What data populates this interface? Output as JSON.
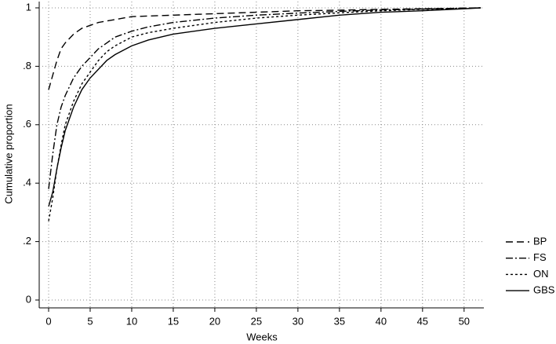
{
  "chart_data": {
    "type": "line",
    "xlabel": "Weeks",
    "ylabel": "Cumulative proportion",
    "x": [
      0,
      0.5,
      1,
      1.5,
      2,
      3,
      4,
      5,
      6,
      7,
      8,
      10,
      12,
      15,
      20,
      25,
      30,
      35,
      40,
      45,
      50,
      52
    ],
    "series": [
      {
        "name": "BP",
        "color": "#000000",
        "dash": "9,5",
        "values": [
          0.72,
          0.77,
          0.82,
          0.86,
          0.88,
          0.91,
          0.93,
          0.94,
          0.95,
          0.955,
          0.96,
          0.97,
          0.972,
          0.975,
          0.98,
          0.985,
          0.99,
          0.992,
          0.995,
          0.997,
          0.999,
          1
        ]
      },
      {
        "name": "FS",
        "color": "#000000",
        "dash": "9,3,2,3",
        "values": [
          0.38,
          0.5,
          0.6,
          0.66,
          0.7,
          0.76,
          0.8,
          0.83,
          0.86,
          0.88,
          0.9,
          0.92,
          0.935,
          0.95,
          0.965,
          0.975,
          0.982,
          0.988,
          0.993,
          0.996,
          0.999,
          1
        ]
      },
      {
        "name": "ON",
        "color": "#000000",
        "dash": "3,3",
        "values": [
          0.27,
          0.35,
          0.45,
          0.53,
          0.6,
          0.68,
          0.74,
          0.78,
          0.82,
          0.85,
          0.87,
          0.9,
          0.915,
          0.93,
          0.95,
          0.965,
          0.975,
          0.983,
          0.99,
          0.995,
          0.998,
          1
        ]
      },
      {
        "name": "GBS",
        "color": "#000000",
        "dash": "none",
        "values": [
          0.32,
          0.37,
          0.45,
          0.52,
          0.58,
          0.66,
          0.72,
          0.76,
          0.79,
          0.82,
          0.84,
          0.87,
          0.89,
          0.91,
          0.93,
          0.945,
          0.96,
          0.975,
          0.985,
          0.99,
          0.997,
          1
        ]
      }
    ],
    "xlim": [
      0,
      52
    ],
    "xticks": [
      0,
      5,
      10,
      15,
      20,
      25,
      30,
      35,
      40,
      45,
      50
    ],
    "ylim": [
      0,
      1
    ],
    "yticks": [
      0,
      {
        "value": 0.2,
        "label": ".2"
      },
      {
        "value": 0.4,
        "label": ".4"
      },
      {
        "value": 0.6,
        "label": ".6"
      },
      {
        "value": 0.8,
        "label": ".8"
      },
      1
    ],
    "grid": true,
    "legend": "lower right"
  }
}
